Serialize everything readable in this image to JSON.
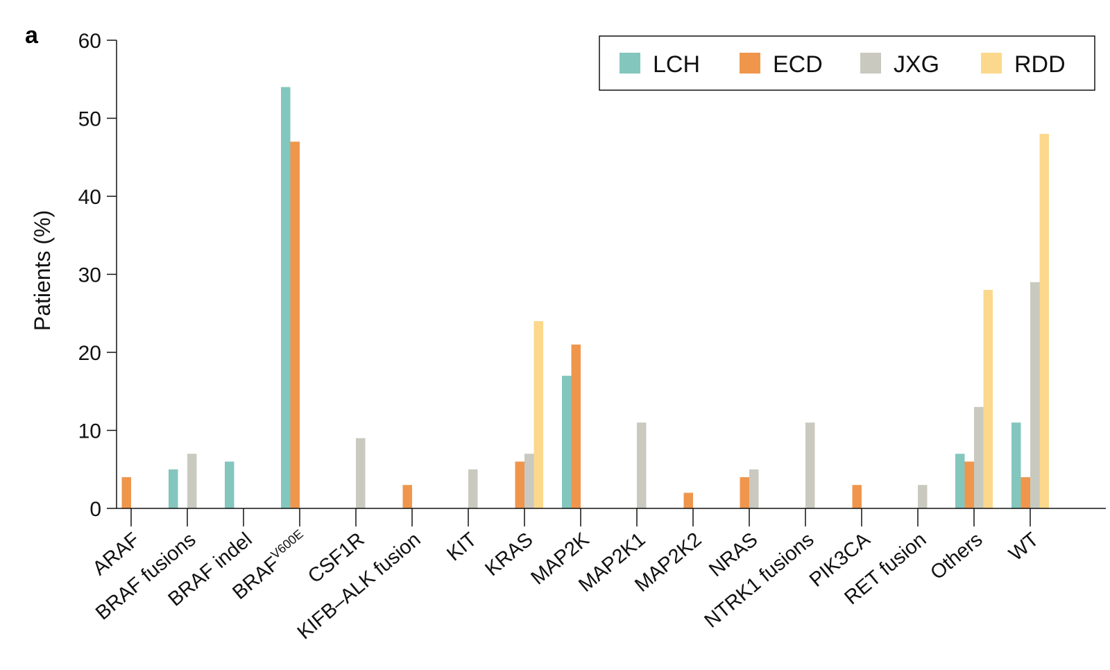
{
  "panel_label": "a",
  "colors": {
    "LCH": "#83c6bd",
    "ECD": "#ef964c",
    "JXG": "#c9c9c0",
    "RDD": "#fbd88c",
    "axis": "#111111"
  },
  "chart_data": {
    "type": "bar",
    "title": "",
    "xlabel": "",
    "ylabel": "Patients (%)",
    "ylim": [
      0,
      60
    ],
    "yticks": [
      0,
      10,
      20,
      30,
      40,
      50,
      60
    ],
    "grid": false,
    "legend_position": "top-right",
    "categories": [
      {
        "text": "ARAF"
      },
      {
        "text": "BRAF fusions"
      },
      {
        "text": "BRAF indel"
      },
      {
        "text": "BRAF",
        "sup": "V600E"
      },
      {
        "text": "CSF1R"
      },
      {
        "text": "KIFB–ALK fusion"
      },
      {
        "text": "KIT"
      },
      {
        "text": "KRAS"
      },
      {
        "text": "MAP2K"
      },
      {
        "text": "MAP2K1"
      },
      {
        "text": "MAP2K2"
      },
      {
        "text": "NRAS"
      },
      {
        "text": "NTRK1 fusions"
      },
      {
        "text": "PIK3CA"
      },
      {
        "text": "RET fusion"
      },
      {
        "text": "Others"
      },
      {
        "text": "WT"
      }
    ],
    "series": [
      {
        "name": "LCH",
        "values": [
          0,
          5,
          6,
          54,
          0,
          0,
          0,
          0,
          17,
          0,
          0,
          0,
          0,
          0,
          0,
          7,
          11
        ]
      },
      {
        "name": "ECD",
        "values": [
          4,
          0,
          0,
          47,
          0,
          3,
          0,
          6,
          21,
          0,
          2,
          4,
          0,
          3,
          0,
          6,
          4
        ]
      },
      {
        "name": "JXG",
        "values": [
          0,
          7,
          0,
          0,
          9,
          0,
          5,
          7,
          0,
          11,
          0,
          5,
          11,
          0,
          3,
          13,
          29
        ]
      },
      {
        "name": "RDD",
        "values": [
          0,
          0,
          0,
          0,
          0,
          0,
          0,
          24,
          0,
          0,
          0,
          0,
          0,
          0,
          0,
          28,
          48
        ]
      }
    ]
  }
}
